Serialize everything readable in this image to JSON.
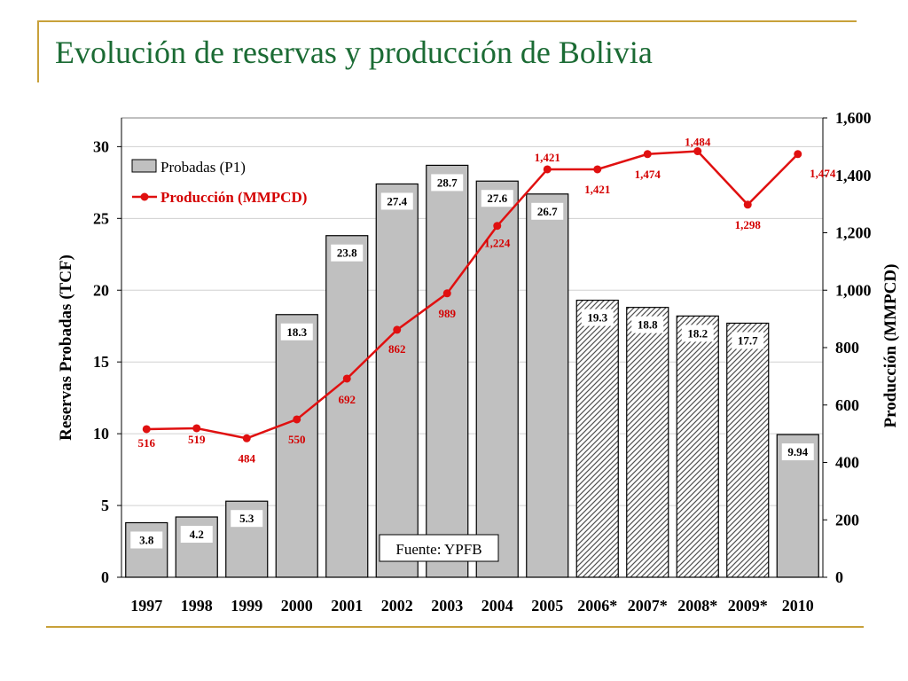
{
  "slide": {
    "title": "Evolución de reservas y producción de Bolivia",
    "source": "Fuente: YPFB"
  },
  "colors": {
    "title": "#1b6b34",
    "rule": "#c8a13a",
    "bar_fill": "#c0c0c0",
    "line": "#e01010",
    "line_label": "#d40000"
  },
  "chart_data": {
    "type": "bar",
    "categories": [
      "1997",
      "1998",
      "1999",
      "2000",
      "2001",
      "2002",
      "2003",
      "2004",
      "2005",
      "2006*",
      "2007*",
      "2008*",
      "2009*",
      "2010"
    ],
    "series": [
      {
        "name": "Probadas (P1)",
        "type": "bar",
        "axis": "left",
        "values": [
          3.8,
          4.2,
          5.3,
          18.3,
          23.8,
          27.4,
          28.7,
          27.6,
          26.7,
          19.3,
          18.8,
          18.2,
          17.7,
          9.94
        ],
        "labels": [
          "3.8",
          "4.2",
          "5.3",
          "18.3",
          "23.8",
          "27.4",
          "28.7",
          "27.6",
          "26.7",
          "19.3",
          "18.8",
          "18.2",
          "17.7",
          "9.94"
        ],
        "hatched": [
          false,
          false,
          false,
          false,
          false,
          false,
          false,
          false,
          false,
          true,
          true,
          true,
          true,
          false
        ]
      },
      {
        "name": "Producción (MMPCD)",
        "type": "line",
        "axis": "right",
        "values": [
          516,
          519,
          484,
          550,
          692,
          862,
          989,
          1224,
          1421,
          1421,
          1474,
          1484,
          1298,
          1474
        ],
        "labels": [
          "516",
          "519",
          "484",
          "550",
          "692",
          "862",
          "989",
          "1,224",
          "1,421",
          "1,421",
          "1,474",
          "1,484",
          "1,298",
          "1,474"
        ]
      }
    ],
    "ylabel": "Reservas Probadas (TCF)",
    "ylabel_right": "Producción (MMPCD)",
    "ylim": [
      0,
      32
    ],
    "ylim_right": [
      0,
      1600
    ],
    "yticks": [
      0,
      5,
      10,
      15,
      20,
      25,
      30
    ],
    "yticks_right": [
      "0",
      "200",
      "400",
      "600",
      "800",
      "1,000",
      "1,200",
      "1,400",
      "1,600"
    ],
    "grid": true,
    "legend": "top-left"
  }
}
